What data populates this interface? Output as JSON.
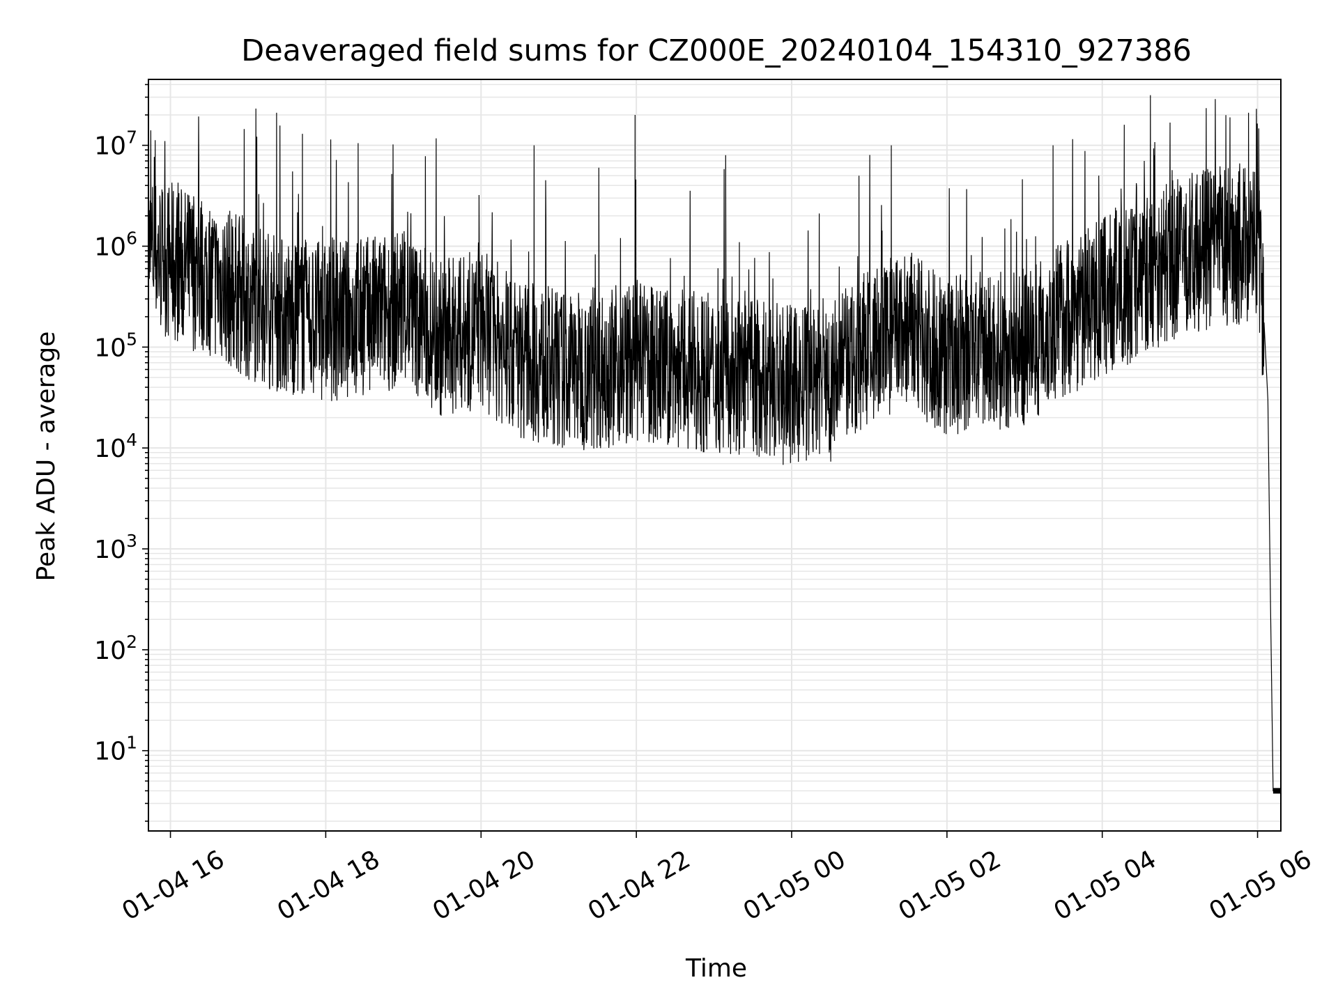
{
  "chart_data": {
    "type": "line",
    "title": "Deaveraged field sums for CZ000E_20240104_154310_927386",
    "xlabel": "Time",
    "ylabel": "Peak ADU - average",
    "y_scale": "log",
    "grid": true,
    "legend": "none",
    "line_color": "#000000",
    "grid_color": "#e6e6e6",
    "xlim": [
      "2024-01-04 15:43",
      "2024-01-05 06:18"
    ],
    "ylim": [
      1.6,
      45000000
    ],
    "x_ticks": [
      {
        "t": "2024-01-04 16:00",
        "label": "01-04 16"
      },
      {
        "t": "2024-01-04 18:00",
        "label": "01-04 18"
      },
      {
        "t": "2024-01-04 20:00",
        "label": "01-04 20"
      },
      {
        "t": "2024-01-04 22:00",
        "label": "01-04 22"
      },
      {
        "t": "2024-01-05 00:00",
        "label": "01-05 00"
      },
      {
        "t": "2024-01-05 02:00",
        "label": "01-05 02"
      },
      {
        "t": "2024-01-05 04:00",
        "label": "01-05 04"
      },
      {
        "t": "2024-01-05 06:00",
        "label": "01-05 06"
      }
    ],
    "y_ticks": [
      {
        "value": 10,
        "base": "10",
        "exp": "1"
      },
      {
        "value": 100,
        "base": "10",
        "exp": "2"
      },
      {
        "value": 1000,
        "base": "10",
        "exp": "3"
      },
      {
        "value": 10000,
        "base": "10",
        "exp": "4"
      },
      {
        "value": 100000,
        "base": "10",
        "exp": "5"
      },
      {
        "value": 1000000,
        "base": "10",
        "exp": "6"
      },
      {
        "value": 10000000,
        "base": "10",
        "exp": "7"
      }
    ],
    "series": [
      {
        "x": [
          "2024-01-04 15:43",
          "2024-01-04 16:00",
          "2024-01-04 16:30",
          "2024-01-04 17:00",
          "2024-01-04 17:30",
          "2024-01-04 18:00",
          "2024-01-04 18:30",
          "2024-01-04 19:00",
          "2024-01-04 19:30",
          "2024-01-04 20:00",
          "2024-01-04 20:30",
          "2024-01-04 21:00",
          "2024-01-04 21:30",
          "2024-01-04 22:00",
          "2024-01-04 22:30",
          "2024-01-04 23:00",
          "2024-01-04 23:30",
          "2024-01-05 00:00",
          "2024-01-05 00:30",
          "2024-01-05 01:00",
          "2024-01-05 01:30",
          "2024-01-05 02:00",
          "2024-01-05 02:30",
          "2024-01-05 03:00",
          "2024-01-05 03:30",
          "2024-01-05 04:00",
          "2024-01-05 04:30",
          "2024-01-05 05:00",
          "2024-01-05 05:30",
          "2024-01-05 06:00",
          "2024-01-05 06:05",
          "2024-01-05 06:08",
          "2024-01-05 06:10",
          "2024-01-05 06:12",
          "2024-01-05 06:14",
          "2024-01-05 06:18"
        ],
        "y": [
          900000,
          700000,
          500000,
          300000,
          200000,
          180000,
          200000,
          250000,
          120000,
          150000,
          80000,
          60000,
          60000,
          70000,
          60000,
          55000,
          50000,
          40000,
          45000,
          100000,
          150000,
          80000,
          90000,
          100000,
          200000,
          300000,
          500000,
          800000,
          1000000,
          1100000,
          200000,
          30000,
          300,
          4,
          4,
          4
        ]
      }
    ],
    "peaks": [
      {
        "x": "2024-01-04 16:22",
        "y": 5500000
      },
      {
        "x": "2024-01-04 16:57",
        "y": 14500000
      },
      {
        "x": "2024-01-04 17:22",
        "y": 21000000
      },
      {
        "x": "2024-01-04 17:42",
        "y": 13000000
      },
      {
        "x": "2024-01-04 18:25",
        "y": 10500000
      },
      {
        "x": "2024-01-04 18:52",
        "y": 10200000
      },
      {
        "x": "2024-01-04 19:17",
        "y": 7800000
      },
      {
        "x": "2024-01-04 20:41",
        "y": 10000000
      },
      {
        "x": "2024-01-04 21:31",
        "y": 6000000
      },
      {
        "x": "2024-01-04 21:59",
        "y": 20000000
      },
      {
        "x": "2024-01-04 23:09",
        "y": 8000000
      },
      {
        "x": "2024-01-05 00:52",
        "y": 5000000
      },
      {
        "x": "2024-01-05 01:17",
        "y": 10000000
      },
      {
        "x": "2024-01-05 03:22",
        "y": 10000000
      },
      {
        "x": "2024-01-05 04:17",
        "y": 16000000
      },
      {
        "x": "2024-01-05 04:40",
        "y": 8000000
      },
      {
        "x": "2024-01-05 05:53",
        "y": 21000000
      }
    ]
  }
}
